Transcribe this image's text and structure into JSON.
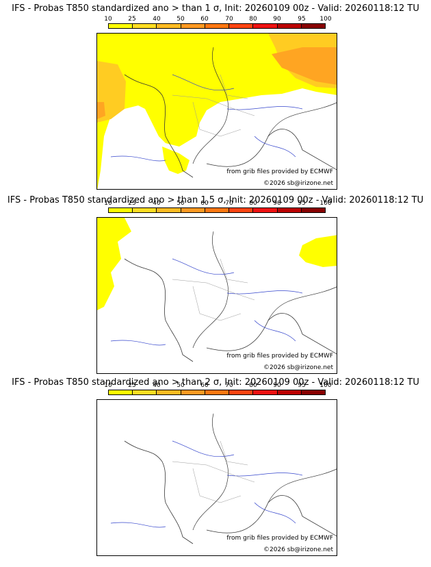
{
  "colorbar": {
    "ticks": [
      "10",
      "25",
      "40",
      "50",
      "60",
      "70",
      "80",
      "90",
      "95",
      "100"
    ],
    "colors": [
      "#ffff00",
      "#ffdd22",
      "#ffbb22",
      "#ff9922",
      "#ff7711",
      "#ff4411",
      "#ee1111",
      "#bb0000",
      "#880000"
    ]
  },
  "panels": [
    {
      "title": "IFS - Probas T850  standardized ano > than 1 σ, Init: 20260109 00z - Valid: 20260118:12 TU",
      "credit_source": "from grib files provided by ECMWF",
      "credit_copyright": "©2026 sb@irizone.net"
    },
    {
      "title": "IFS - Probas T850  standardized ano > than 1.5 σ, Init: 20260109 00z - Valid: 20260118:12 TU",
      "credit_source": "from grib files provided by ECMWF",
      "credit_copyright": "©2026 sb@irizone.net"
    },
    {
      "title": "IFS - Probas T850  standardized ano > than 2 σ, Init: 20260109 00z - Valid: 20260118:12 TU",
      "credit_source": "from grib files provided by ECMWF",
      "credit_copyright": "©2026 sb@irizone.net"
    }
  ]
}
